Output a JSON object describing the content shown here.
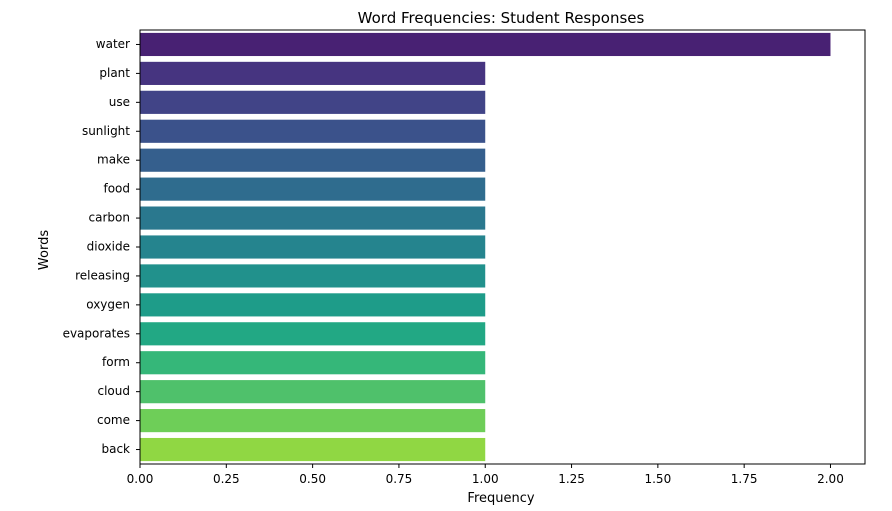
{
  "chart_data": {
    "type": "bar",
    "orientation": "horizontal",
    "title": "Word Frequencies: Student Responses",
    "xlabel": "Frequency",
    "ylabel": "Words",
    "categories": [
      "water",
      "plant",
      "use",
      "sunlight",
      "make",
      "food",
      "carbon",
      "dioxide",
      "releasing",
      "oxygen",
      "evaporates",
      "form",
      "cloud",
      "come",
      "back"
    ],
    "values": [
      2,
      1,
      1,
      1,
      1,
      1,
      1,
      1,
      1,
      1,
      1,
      1,
      1,
      1,
      1
    ],
    "xlim": [
      0,
      2.1
    ],
    "xticks": [
      "0.00",
      "0.25",
      "0.50",
      "0.75",
      "1.00",
      "1.25",
      "1.50",
      "1.75",
      "2.00"
    ],
    "grid": false,
    "colormap": "viridis",
    "colors": [
      "#482173",
      "#463480",
      "#414487",
      "#3b528b",
      "#355f8d",
      "#2f6c8e",
      "#2a788e",
      "#25848e",
      "#21918c",
      "#1e9c89",
      "#22a884",
      "#35b779",
      "#4fc16b",
      "#6ece58",
      "#90d743"
    ]
  }
}
